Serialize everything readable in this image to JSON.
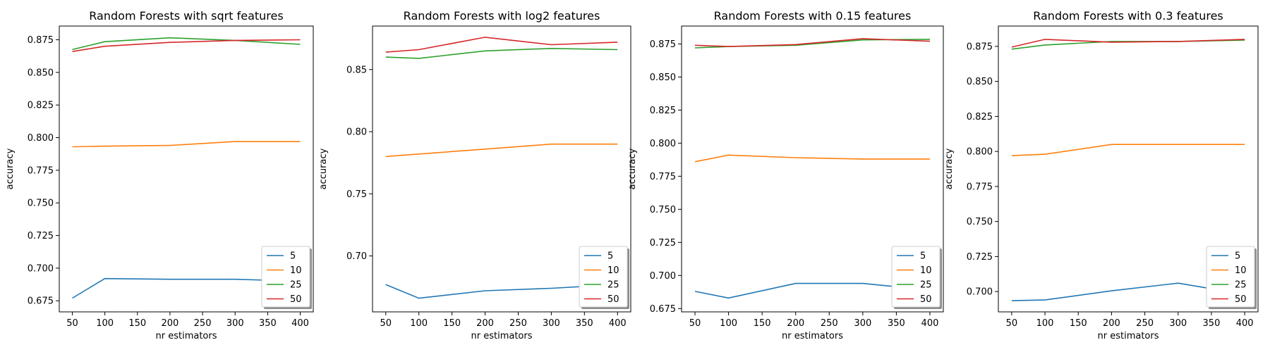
{
  "chart_data": [
    {
      "type": "line",
      "title": "Random Forests with sqrt features",
      "xlabel": "nr estimators",
      "ylabel": "accuracy",
      "x": [
        50,
        100,
        200,
        300,
        400
      ],
      "xlim": [
        30,
        420
      ],
      "ylim": [
        0.6665,
        0.8855
      ],
      "xticks": [
        50,
        100,
        150,
        200,
        250,
        300,
        350,
        400
      ],
      "yticks": [
        0.675,
        0.7,
        0.725,
        0.75,
        0.775,
        0.8,
        0.825,
        0.85,
        0.875
      ],
      "ytick_decimals": 3,
      "legend": "lower-right",
      "series": [
        {
          "name": "5",
          "color": "#1f77b4",
          "values": [
            0.677,
            0.692,
            0.6915,
            0.6915,
            0.69
          ]
        },
        {
          "name": "10",
          "color": "#ff7f0e",
          "values": [
            0.793,
            0.7935,
            0.794,
            0.797,
            0.797
          ]
        },
        {
          "name": "25",
          "color": "#2ca02c",
          "values": [
            0.8675,
            0.8735,
            0.8765,
            0.8745,
            0.8715
          ]
        },
        {
          "name": "50",
          "color": "#d62728",
          "values": [
            0.866,
            0.87,
            0.873,
            0.8745,
            0.875
          ]
        }
      ]
    },
    {
      "type": "line",
      "title": "Random Forests with log2 features",
      "xlabel": "nr estimators",
      "ylabel": "accuracy",
      "x": [
        50,
        100,
        200,
        300,
        400
      ],
      "xlim": [
        30,
        420
      ],
      "ylim": [
        0.655,
        0.885
      ],
      "xticks": [
        50,
        100,
        150,
        200,
        250,
        300,
        350,
        400
      ],
      "yticks": [
        0.7,
        0.75,
        0.8,
        0.85
      ],
      "ytick_decimals": 2,
      "legend": "lower-right",
      "series": [
        {
          "name": "5",
          "color": "#1f77b4",
          "values": [
            0.677,
            0.666,
            0.672,
            0.674,
            0.677
          ]
        },
        {
          "name": "10",
          "color": "#ff7f0e",
          "values": [
            0.78,
            0.782,
            0.786,
            0.79,
            0.79
          ]
        },
        {
          "name": "25",
          "color": "#2ca02c",
          "values": [
            0.86,
            0.859,
            0.865,
            0.867,
            0.866
          ]
        },
        {
          "name": "50",
          "color": "#d62728",
          "values": [
            0.864,
            0.866,
            0.876,
            0.87,
            0.872
          ]
        }
      ]
    },
    {
      "type": "line",
      "title": "Random Forests with 0.15 features",
      "xlabel": "nr estimators",
      "ylabel": "accuracy",
      "x": [
        50,
        100,
        200,
        300,
        400
      ],
      "xlim": [
        30,
        420
      ],
      "ylim": [
        0.6725,
        0.8885
      ],
      "xticks": [
        50,
        100,
        150,
        200,
        250,
        300,
        350,
        400
      ],
      "yticks": [
        0.675,
        0.7,
        0.725,
        0.75,
        0.775,
        0.8,
        0.825,
        0.85,
        0.875
      ],
      "ytick_decimals": 3,
      "legend": "lower-right",
      "series": [
        {
          "name": "5",
          "color": "#1f77b4",
          "values": [
            0.688,
            0.683,
            0.694,
            0.694,
            0.689
          ]
        },
        {
          "name": "10",
          "color": "#ff7f0e",
          "values": [
            0.786,
            0.791,
            0.789,
            0.788,
            0.788
          ]
        },
        {
          "name": "25",
          "color": "#2ca02c",
          "values": [
            0.872,
            0.873,
            0.874,
            0.878,
            0.8785
          ]
        },
        {
          "name": "50",
          "color": "#d62728",
          "values": [
            0.874,
            0.873,
            0.8745,
            0.879,
            0.877
          ]
        }
      ]
    },
    {
      "type": "line",
      "title": "Random Forests with 0.3 features",
      "xlabel": "nr estimators",
      "ylabel": "accuracy",
      "x": [
        50,
        100,
        200,
        300,
        400
      ],
      "xlim": [
        30,
        420
      ],
      "ylim": [
        0.6855,
        0.8895
      ],
      "xticks": [
        50,
        100,
        150,
        200,
        250,
        300,
        350,
        400
      ],
      "yticks": [
        0.7,
        0.725,
        0.75,
        0.775,
        0.8,
        0.825,
        0.85,
        0.875
      ],
      "ytick_decimals": 3,
      "legend": "lower-right",
      "series": [
        {
          "name": "5",
          "color": "#1f77b4",
          "values": [
            0.6935,
            0.694,
            0.7005,
            0.706,
            0.698
          ]
        },
        {
          "name": "10",
          "color": "#ff7f0e",
          "values": [
            0.797,
            0.798,
            0.805,
            0.805,
            0.805
          ]
        },
        {
          "name": "25",
          "color": "#2ca02c",
          "values": [
            0.873,
            0.876,
            0.8785,
            0.8785,
            0.8795
          ]
        },
        {
          "name": "50",
          "color": "#d62728",
          "values": [
            0.8745,
            0.88,
            0.878,
            0.8785,
            0.88
          ]
        }
      ]
    }
  ]
}
